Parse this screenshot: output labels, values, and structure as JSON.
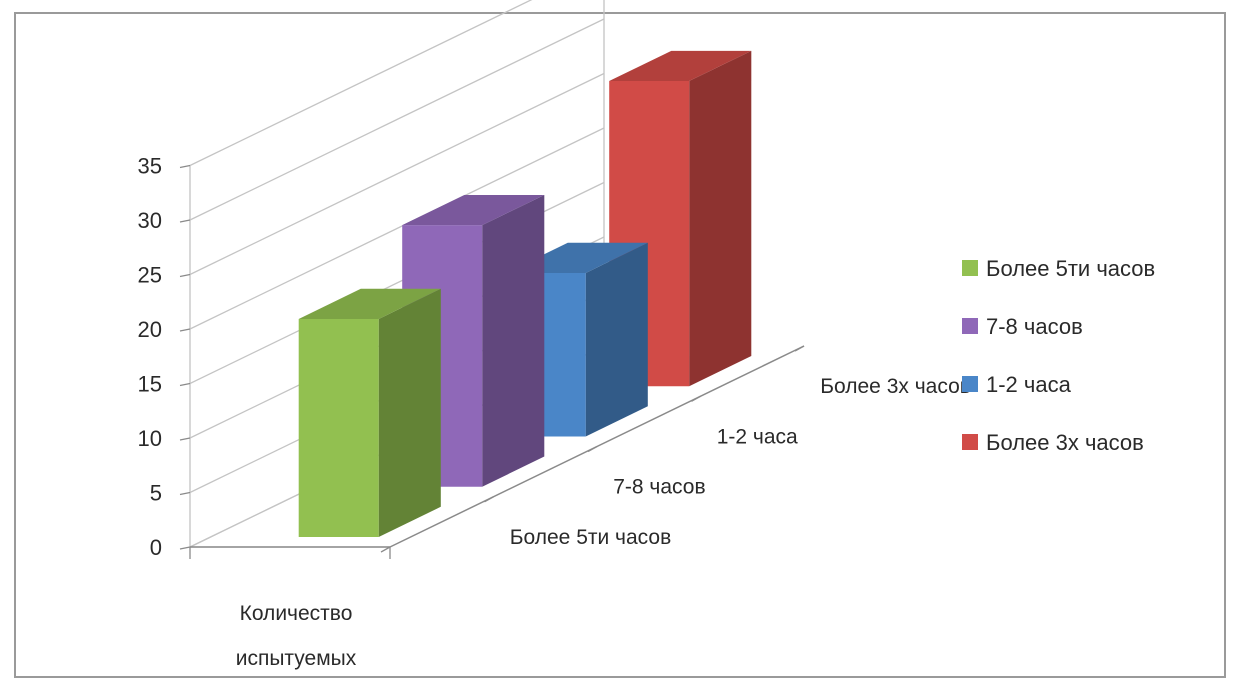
{
  "chart_data": {
    "type": "bar",
    "title": "",
    "xlabel": "",
    "ylabel": "",
    "categories": [
      "Количество испытуемых"
    ],
    "category_lines": [
      "Количество",
      "испытуемых"
    ],
    "depth_labels": [
      "Более 5ти часов",
      "7-8 часов",
      "1-2 часа",
      "Более 3х часов"
    ],
    "series": [
      {
        "name": "Более 5ти часов",
        "values": [
          20
        ],
        "color": "#92c050"
      },
      {
        "name": "7-8 часов",
        "values": [
          24
        ],
        "color": "#8f68b8"
      },
      {
        "name": "1-2 часа",
        "values": [
          15
        ],
        "color": "#4a86c8"
      },
      {
        "name": "Более 3х часов",
        "values": [
          28
        ],
        "color": "#d14b47"
      }
    ],
    "y_ticks": [
      "0",
      "5",
      "10",
      "15",
      "20",
      "25",
      "30",
      "35"
    ],
    "ylim": [
      0,
      35
    ],
    "grid": true,
    "legend_position": "right",
    "three_d": true
  }
}
